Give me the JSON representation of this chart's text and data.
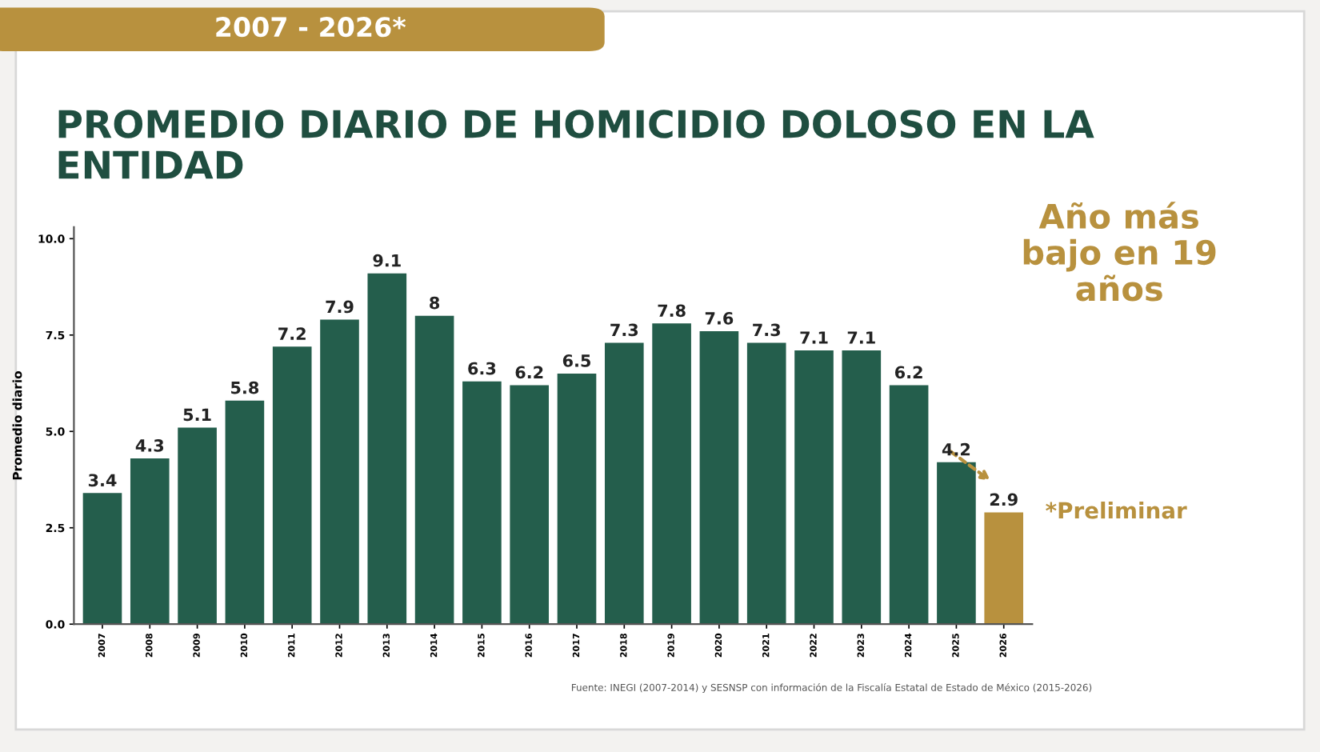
{
  "chart_data": {
    "type": "bar",
    "title": "PROMEDIO DIARIO DE HOMICIDIO DOLOSO EN LA\nENTIDAD",
    "ylabel": "Promedio diario",
    "categories": [
      "2007",
      "2008",
      "2009",
      "2010",
      "2011",
      "2012",
      "2013",
      "2014",
      "2015",
      "2016",
      "2017",
      "2018",
      "2019",
      "2020",
      "2021",
      "2022",
      "2023",
      "2024",
      "2025",
      "2026"
    ],
    "values": [
      3.4,
      4.3,
      5.1,
      5.8,
      7.2,
      7.9,
      9.1,
      8,
      6.3,
      6.2,
      6.5,
      7.3,
      7.8,
      7.6,
      7.3,
      7.1,
      7.1,
      6.2,
      4.2,
      2.9
    ],
    "colors": [
      "#245e4c",
      "#245e4c",
      "#245e4c",
      "#245e4c",
      "#245e4c",
      "#245e4c",
      "#245e4c",
      "#245e4c",
      "#245e4c",
      "#245e4c",
      "#245e4c",
      "#245e4c",
      "#245e4c",
      "#245e4c",
      "#245e4c",
      "#245e4c",
      "#245e4c",
      "#245e4c",
      "#245e4c",
      "#b8913e"
    ],
    "ylim": [
      0,
      10.3
    ],
    "yticks": [
      {
        "value": 0,
        "label": "0.0"
      },
      {
        "value": 2.5,
        "label": "2.5"
      },
      {
        "value": 5,
        "label": "5.0"
      },
      {
        "value": 7.5,
        "label": "7.5"
      },
      {
        "value": 10,
        "label": "10.0"
      }
    ],
    "data_labels": true,
    "grid": false,
    "legend": false,
    "annotations": [
      "2007 - 2026*",
      "Año más\nbajo en 19\naños",
      {
        "text": "*Preliminar",
        "x": "2026",
        "y": 2.9
      },
      "Fuente: INEGI (2007-2014) y SESNSP con información de la Fiscalía Estatal de Estado de México (2015-2026)"
    ]
  }
}
